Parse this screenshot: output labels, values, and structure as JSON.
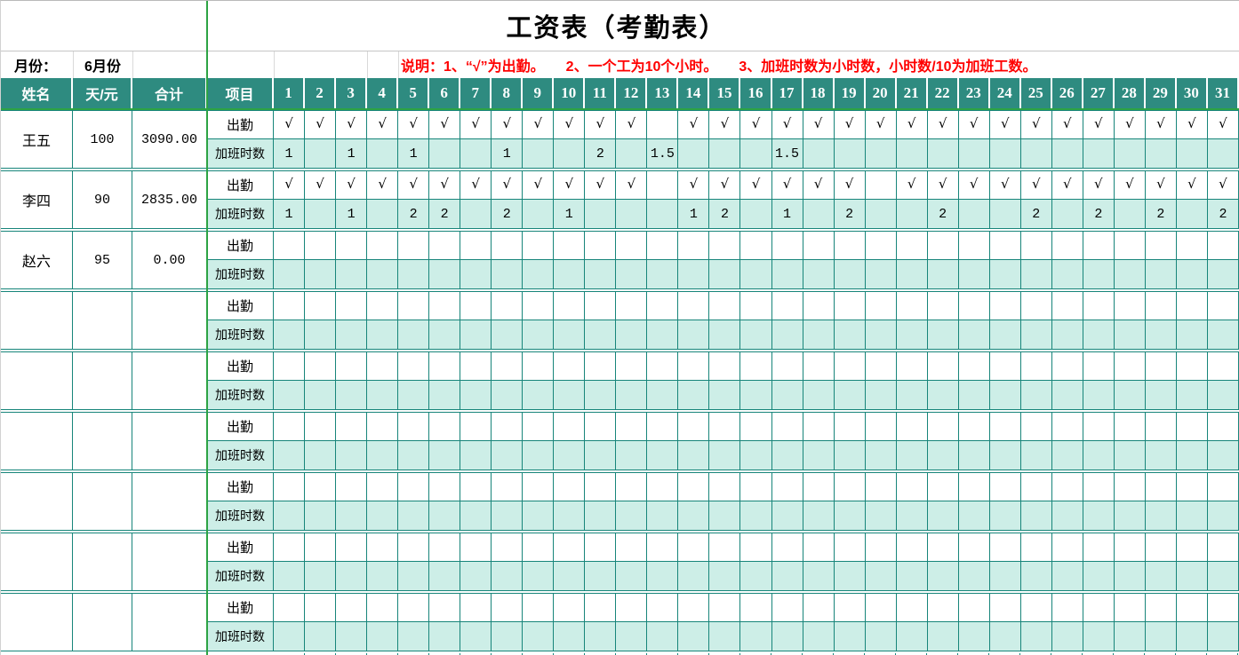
{
  "title": "工资表（考勤表）",
  "meta": {
    "month_label": "月份：",
    "month_value": "6月份"
  },
  "note": "说明：1、“√”为出勤。　　2、一个工为10个小时。　　3、加班时数为小时数，小时数/10为加班工数。",
  "colors": {
    "header_bg": "#2E8B80",
    "grid": "#17857A",
    "mint": "#CDEEE7",
    "freeze_line": "#2DA344",
    "note_red": "#FF0000"
  },
  "table": {
    "headers": {
      "name": "姓名",
      "rate": "天/元",
      "total": "合计",
      "item": "项目"
    },
    "days": [
      1,
      2,
      3,
      4,
      5,
      6,
      7,
      8,
      9,
      10,
      11,
      12,
      13,
      14,
      15,
      16,
      17,
      18,
      19,
      20,
      21,
      22,
      23,
      24,
      25,
      26,
      27,
      28,
      29,
      30,
      31
    ],
    "row_labels": {
      "attendance": "出勤",
      "overtime": "加班时数"
    },
    "check_glyph": "√",
    "employees": [
      {
        "name": "王五",
        "rate": "100",
        "total": "3090.00",
        "attendance_days": [
          1,
          2,
          3,
          4,
          5,
          6,
          7,
          8,
          9,
          10,
          11,
          12,
          14,
          15,
          16,
          17,
          18,
          19,
          20,
          21,
          22,
          23,
          24,
          25,
          26,
          27,
          28,
          29,
          30,
          31
        ],
        "overtime": {
          "1": "1",
          "3": "1",
          "5": "1",
          "8": "1",
          "11": "2",
          "13": "1.5",
          "17": "1.5"
        }
      },
      {
        "name": "李四",
        "rate": "90",
        "total": "2835.00",
        "attendance_days": [
          1,
          2,
          3,
          4,
          5,
          6,
          7,
          8,
          9,
          10,
          11,
          12,
          14,
          15,
          16,
          17,
          18,
          19,
          21,
          22,
          23,
          24,
          25,
          26,
          27,
          28,
          29,
          30,
          31
        ],
        "overtime": {
          "1": "1",
          "3": "1",
          "5": "2",
          "6": "2",
          "8": "2",
          "10": "1",
          "14": "1",
          "15": "2",
          "17": "1",
          "19": "2",
          "22": "2",
          "25": "2",
          "27": "2",
          "29": "2",
          "31": "2"
        }
      },
      {
        "name": "赵六",
        "rate": "95",
        "total": "0.00",
        "attendance_days": [],
        "overtime": {}
      },
      {
        "name": "",
        "rate": "",
        "total": "",
        "attendance_days": [],
        "overtime": {}
      },
      {
        "name": "",
        "rate": "",
        "total": "",
        "attendance_days": [],
        "overtime": {}
      },
      {
        "name": "",
        "rate": "",
        "total": "",
        "attendance_days": [],
        "overtime": {}
      },
      {
        "name": "",
        "rate": "",
        "total": "",
        "attendance_days": [],
        "overtime": {}
      },
      {
        "name": "",
        "rate": "",
        "total": "",
        "attendance_days": [],
        "overtime": {}
      },
      {
        "name": "",
        "rate": "",
        "total": "",
        "attendance_days": [],
        "overtime": {}
      }
    ]
  }
}
